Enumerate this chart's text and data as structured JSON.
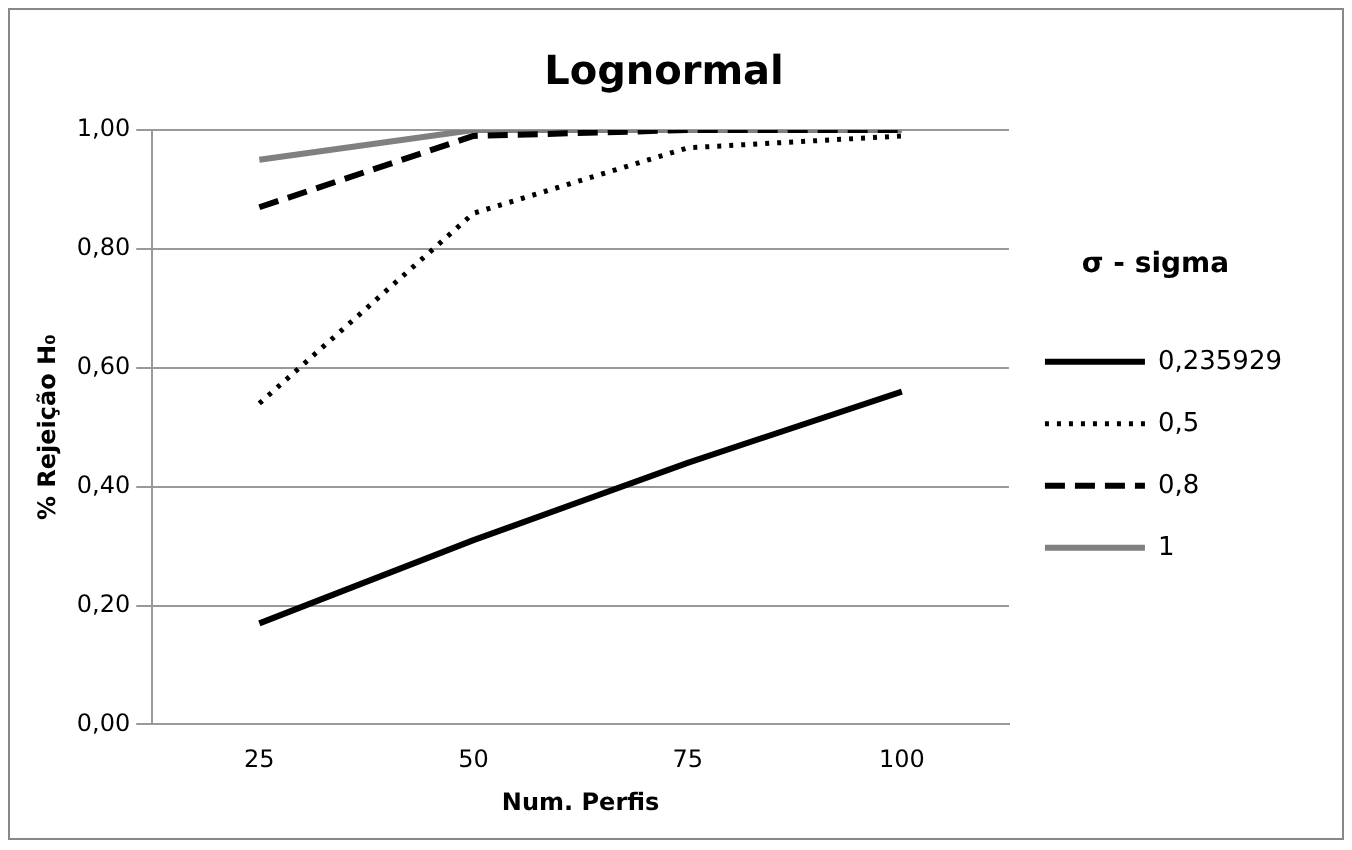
{
  "chart_data": {
    "type": "line",
    "title": "Lognormal",
    "xlabel": "Num. Perfis",
    "ylabel": "% Rejeição H₀",
    "legend_title": "σ - sigma",
    "categories": [
      "25",
      "50",
      "75",
      "100"
    ],
    "series": [
      {
        "name": "0,235929",
        "color": "#000000",
        "line_style": "solid",
        "values": [
          0.17,
          0.31,
          0.44,
          0.56
        ]
      },
      {
        "name": "0,5",
        "color": "#000000",
        "line_style": "dotted",
        "values": [
          0.54,
          0.86,
          0.97,
          0.99
        ]
      },
      {
        "name": "0,8",
        "color": "#000000",
        "line_style": "dashed",
        "values": [
          0.87,
          0.99,
          1.0,
          1.0
        ]
      },
      {
        "name": "1",
        "color": "#808080",
        "line_style": "solid",
        "values": [
          0.95,
          1.0,
          1.0,
          1.0
        ]
      }
    ],
    "ylim": [
      0,
      1
    ],
    "yticks": [
      {
        "value": 0,
        "label": "0,00"
      },
      {
        "value": 0.2,
        "label": "0,20"
      },
      {
        "value": 0.4,
        "label": "0,40"
      },
      {
        "value": 0.6,
        "label": "0,60"
      },
      {
        "value": 0.8,
        "label": "0,80"
      },
      {
        "value": 1,
        "label": "1,00"
      }
    ],
    "grid": "y",
    "legend": "right",
    "marker": "none"
  }
}
